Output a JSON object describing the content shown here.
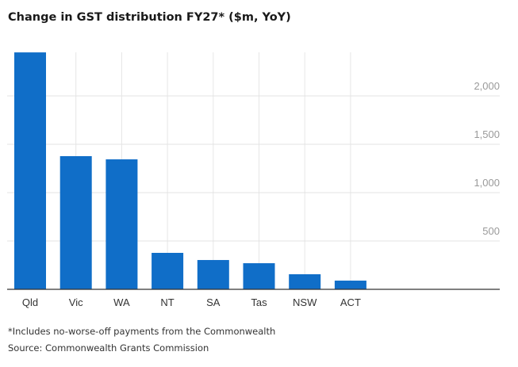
{
  "chart_data": {
    "type": "bar",
    "title": "Change in GST distribution FY27* ($m, YoY)",
    "categories": [
      "Qld",
      "Vic",
      "WA",
      "NT",
      "SA",
      "Tas",
      "NSW",
      "ACT"
    ],
    "values": [
      2450,
      1377,
      1344,
      377,
      303,
      270,
      156,
      90
    ],
    "xlabel": "",
    "ylabel": "",
    "ylim": [
      0,
      2450
    ],
    "yticks": [
      500,
      1000,
      1500,
      2000
    ],
    "ytick_labels": [
      "500",
      "1,000",
      "1,500",
      "2,000"
    ],
    "y_axis_position": "right",
    "grid": true,
    "bar_color": "#106ec8"
  },
  "footnotes": {
    "note": "*Includes no-worse-off payments from the Commonwealth",
    "source": "Source: Commonwealth Grants Commission"
  }
}
